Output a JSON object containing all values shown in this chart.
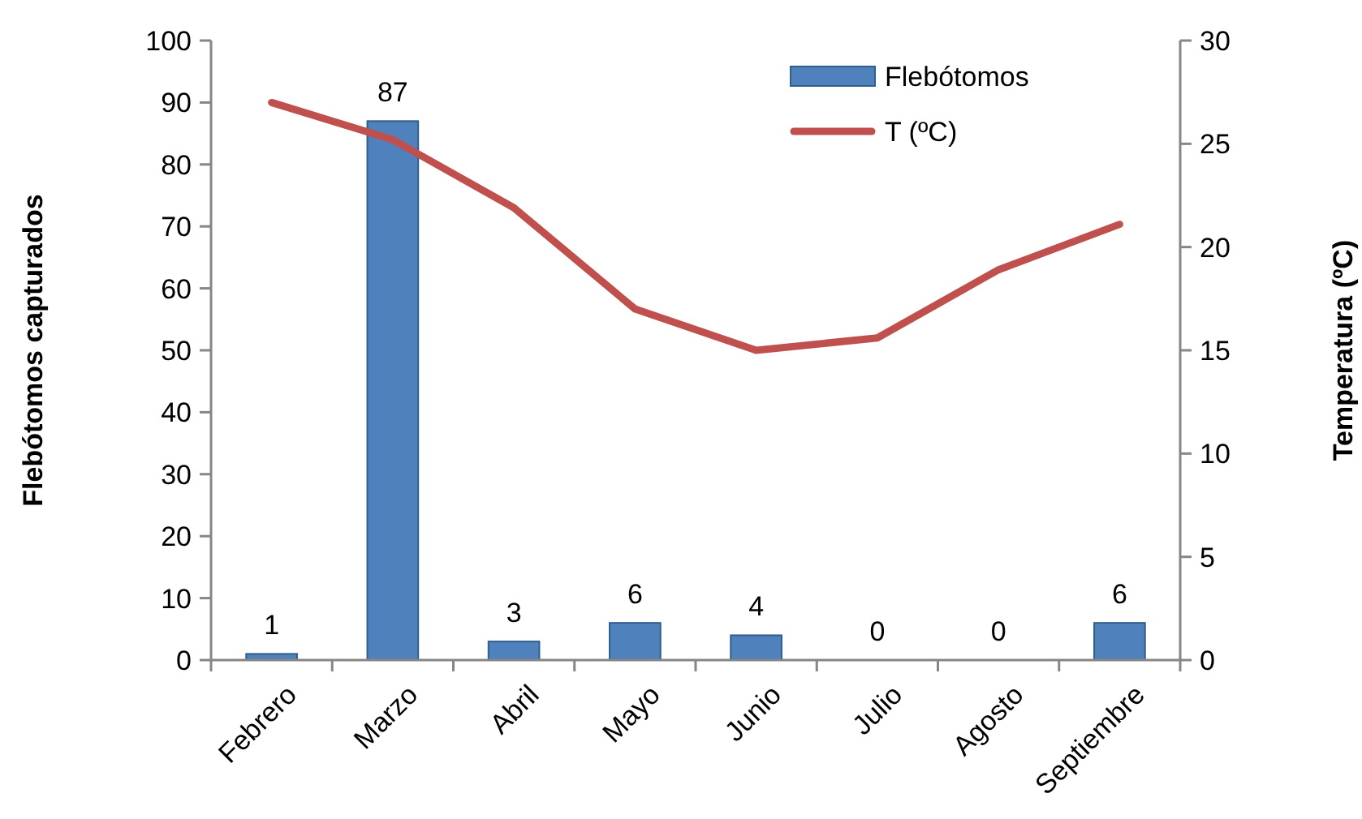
{
  "chart_data": {
    "type": "bar",
    "categories": [
      "Febrero",
      "Marzo",
      "Abril",
      "Mayo",
      "Junio",
      "Julio",
      "Agosto",
      "Septiembre"
    ],
    "series": [
      {
        "name": "Flebótomos",
        "color": "#4f81bd",
        "values": [
          1,
          87,
          3,
          6,
          4,
          0,
          0,
          6
        ],
        "value_labels": [
          "1",
          "87",
          "3",
          "6",
          "4",
          "0",
          "0",
          "6"
        ]
      },
      {
        "name": "T (ºC)",
        "type": "line",
        "axis": "y2",
        "color": "#c0504d",
        "values": [
          27.0,
          25.2,
          21.9,
          17.0,
          15.0,
          15.6,
          18.9,
          21.1
        ]
      }
    ],
    "ylabel": "Flebótomos capturados",
    "y2label": "Temperatura (ºC)",
    "ylim": [
      0,
      100
    ],
    "yticks": [
      0,
      10,
      20,
      30,
      40,
      50,
      60,
      70,
      80,
      90,
      100
    ],
    "y2lim": [
      0,
      30
    ],
    "y2ticks": [
      0,
      5,
      10,
      15,
      20,
      25,
      30
    ],
    "legend": "top right",
    "grid": false,
    "marker": "none",
    "line_style": "solid"
  }
}
